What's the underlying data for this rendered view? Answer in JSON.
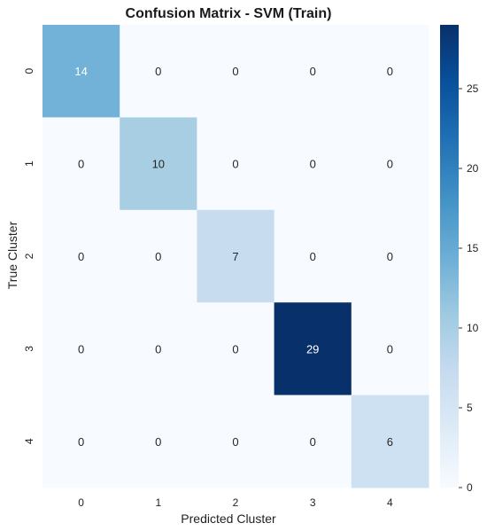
{
  "chart_data": {
    "type": "heatmap",
    "title": "Confusion Matrix - SVM (Train)",
    "xlabel": "Predicted Cluster",
    "ylabel": "True Cluster",
    "x_categories": [
      "0",
      "1",
      "2",
      "3",
      "4"
    ],
    "y_categories": [
      "0",
      "1",
      "2",
      "3",
      "4"
    ],
    "values": [
      [
        14,
        0,
        0,
        0,
        0
      ],
      [
        0,
        10,
        0,
        0,
        0
      ],
      [
        0,
        0,
        7,
        0,
        0
      ],
      [
        0,
        0,
        0,
        29,
        0
      ],
      [
        0,
        0,
        0,
        0,
        6
      ]
    ],
    "colormap": "Blues",
    "colorbar": {
      "range": [
        0,
        29
      ],
      "ticks": [
        0,
        5,
        10,
        15,
        20,
        25
      ]
    },
    "grid": false
  }
}
